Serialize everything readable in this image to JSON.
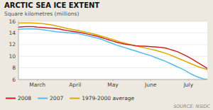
{
  "chart_data": {
    "type": "line",
    "title": "ARCTIC SEA ICE EXTENT",
    "y_label": "Square kilometres (millions)",
    "source": "SOURCE: NSIDC",
    "x": [
      0.0,
      0.1,
      0.2,
      0.3,
      0.4,
      0.5,
      0.6,
      0.7,
      0.8,
      0.9,
      1.0,
      1.1,
      1.2,
      1.3,
      1.4,
      1.5,
      1.6,
      1.7,
      1.8,
      1.9,
      2.0,
      2.1,
      2.2,
      2.3,
      2.4,
      2.5,
      2.6,
      2.7,
      2.8,
      2.9,
      3.0,
      3.1,
      3.2,
      3.3,
      3.4,
      3.5,
      3.6,
      3.7,
      3.8,
      3.9,
      4.0,
      4.1,
      4.2,
      4.3,
      4.4,
      4.5,
      4.6,
      4.7,
      4.8,
      4.9,
      5.0
    ],
    "xlim": [
      0,
      5.0
    ],
    "xticks": [
      {
        "value": 0.5,
        "label": "March"
      },
      {
        "value": 1.5,
        "label": "April"
      },
      {
        "value": 2.5,
        "label": "May"
      },
      {
        "value": 3.5,
        "label": "June"
      },
      {
        "value": 4.5,
        "label": "July"
      }
    ],
    "ylim": [
      6,
      16
    ],
    "yticks": [
      6,
      8,
      10,
      12,
      14,
      16
    ],
    "grid": true,
    "legend": "bottom",
    "series": [
      {
        "name": "2008",
        "color": "#cc2222",
        "values": [
          15.0,
          15.05,
          15.1,
          15.1,
          15.08,
          15.0,
          14.95,
          14.9,
          14.85,
          14.8,
          14.75,
          14.65,
          14.5,
          14.4,
          14.3,
          14.2,
          14.1,
          14.0,
          13.85,
          13.7,
          13.55,
          13.4,
          13.2,
          13.0,
          12.8,
          12.6,
          12.4,
          12.25,
          12.1,
          12.0,
          11.9,
          11.8,
          11.75,
          11.72,
          11.7,
          11.65,
          11.6,
          11.55,
          11.5,
          11.4,
          11.2,
          11.0,
          10.8,
          10.5,
          10.2,
          9.85,
          9.5,
          9.1,
          8.7,
          8.3,
          7.9
        ]
      },
      {
        "name": "2007",
        "color": "#55bbee",
        "values": [
          14.6,
          14.65,
          14.68,
          14.7,
          14.7,
          14.65,
          14.6,
          14.5,
          14.4,
          14.3,
          14.2,
          14.15,
          14.1,
          14.05,
          14.0,
          13.95,
          13.85,
          13.7,
          13.55,
          13.4,
          13.25,
          13.1,
          12.9,
          12.65,
          12.4,
          12.15,
          11.9,
          11.7,
          11.5,
          11.3,
          11.1,
          10.9,
          10.7,
          10.5,
          10.3,
          10.1,
          9.85,
          9.6,
          9.35,
          9.1,
          8.8,
          8.5,
          8.2,
          7.9,
          7.6,
          7.2,
          6.85,
          6.55,
          6.3,
          6.1,
          6.0
        ]
      },
      {
        "name": "1979-2000 average",
        "color": "#ddaa00",
        "values": [
          15.7,
          15.72,
          15.73,
          15.72,
          15.7,
          15.67,
          15.62,
          15.55,
          15.45,
          15.35,
          15.2,
          15.05,
          14.9,
          14.75,
          14.62,
          14.5,
          14.38,
          14.25,
          14.1,
          13.95,
          13.8,
          13.65,
          13.45,
          13.25,
          13.05,
          12.85,
          12.65,
          12.45,
          12.28,
          12.1,
          11.95,
          11.8,
          11.65,
          11.5,
          11.35,
          11.2,
          11.05,
          10.88,
          10.7,
          10.5,
          10.25,
          10.0,
          9.72,
          9.45,
          9.18,
          8.9,
          8.62,
          8.35,
          8.1,
          7.9,
          7.7
        ]
      }
    ]
  }
}
